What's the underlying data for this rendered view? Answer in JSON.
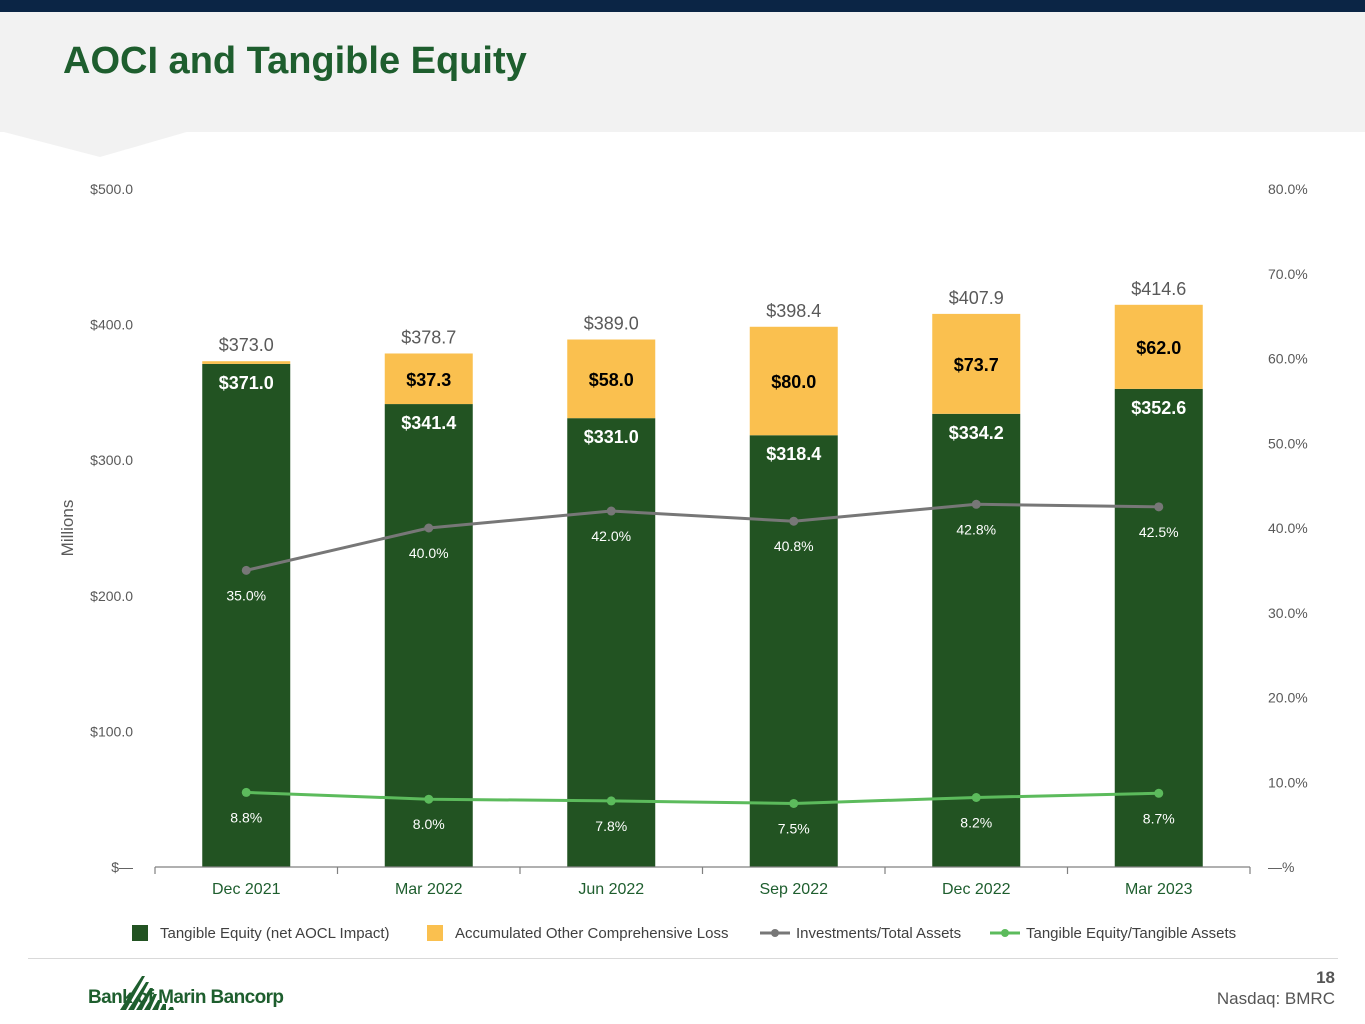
{
  "slide": {
    "title": "AOCI and Tangible Equity",
    "page_number": "18",
    "ticker": "Nasdaq: BMRC",
    "logo_text": "Bank of Marin Bancorp"
  },
  "colors": {
    "tangible_equity": "#225322",
    "aocl": "#fac04f",
    "investments_line": "#777777",
    "te_ratio_line": "#5cbb5c",
    "title": "#1e5e2e",
    "top_bar": "#0b2545"
  },
  "chart_data": {
    "type": "bar",
    "stacked": true,
    "categories": [
      "Dec 2021",
      "Mar 2022",
      "Jun 2022",
      "Sep 2022",
      "Dec 2022",
      "Mar 2023"
    ],
    "ylabel": "Millions",
    "ylim": [
      0,
      500
    ],
    "y_ticks": [
      "$—",
      "$100.0",
      "$200.0",
      "$300.0",
      "$400.0",
      "$500.0"
    ],
    "y2lim": [
      0,
      80
    ],
    "y2_ticks": [
      "—%",
      "10.0%",
      "20.0%",
      "30.0%",
      "40.0%",
      "50.0%",
      "60.0%",
      "70.0%",
      "80.0%"
    ],
    "legend_position": "bottom",
    "series": [
      {
        "name": "Tangible Equity (net AOCL Impact)",
        "kind": "bar",
        "values": [
          371.0,
          341.4,
          331.0,
          318.4,
          334.2,
          352.6
        ],
        "labels": [
          "$371.0",
          "$341.4",
          "$331.0",
          "$318.4",
          "$334.2",
          "$352.6"
        ]
      },
      {
        "name": "Accumulated Other Comprehensive Loss",
        "kind": "bar",
        "values": [
          2.0,
          37.3,
          58.0,
          80.0,
          73.7,
          62.0
        ],
        "labels": [
          "",
          "$37.3",
          "$58.0",
          "$80.0",
          "$73.7",
          "$62.0"
        ]
      },
      {
        "name": "Investments/Total Assets",
        "kind": "line",
        "axis": "secondary",
        "values": [
          35.0,
          40.0,
          42.0,
          40.8,
          42.8,
          42.5
        ],
        "labels": [
          "35.0%",
          "40.0%",
          "42.0%",
          "40.8%",
          "42.8%",
          "42.5%"
        ]
      },
      {
        "name": "Tangible Equity/Tangible Assets",
        "kind": "line",
        "axis": "secondary",
        "values": [
          8.8,
          8.0,
          7.8,
          7.5,
          8.2,
          8.7
        ],
        "labels": [
          "8.8%",
          "8.0%",
          "7.8%",
          "7.5%",
          "8.2%",
          "8.7%"
        ]
      }
    ],
    "totals": {
      "values": [
        373.0,
        378.7,
        389.0,
        398.4,
        407.9,
        414.6
      ],
      "labels": [
        "$373.0",
        "$378.7",
        "$389.0",
        "$398.4",
        "$407.9",
        "$414.6"
      ]
    }
  }
}
